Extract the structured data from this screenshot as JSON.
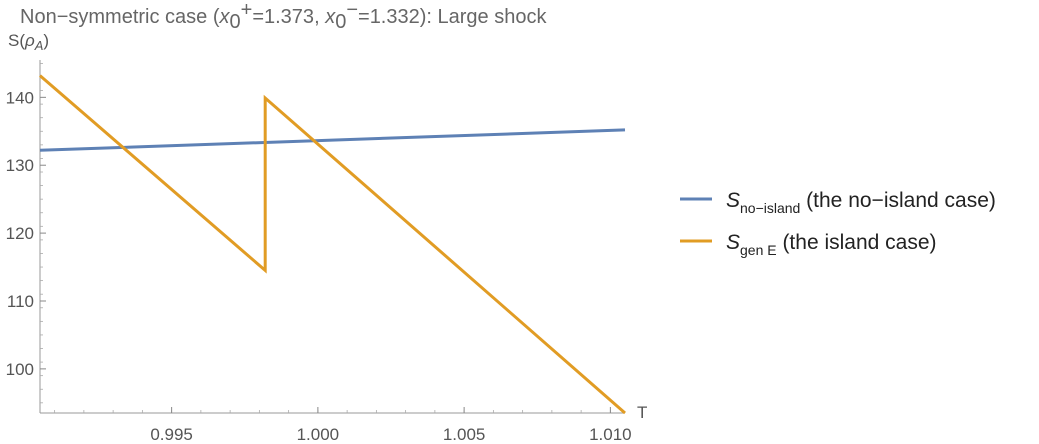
{
  "chart_data": {
    "type": "line",
    "title": {
      "prefix": "Non−symmetric case (",
      "x0_plus_value": "1.373",
      "x0_minus_value": "1.332",
      "suffix": "): Large shock"
    },
    "xlabel": "T",
    "ylabel": "S(ρA)",
    "xlim": [
      0.9905,
      1.0105
    ],
    "ylim": [
      93.5,
      145.5
    ],
    "xticks": [
      0.995,
      1.0,
      1.005,
      1.01
    ],
    "xtick_labels": [
      "0.995",
      "1.000",
      "1.005",
      "1.010"
    ],
    "yticks": [
      100,
      110,
      120,
      130,
      140
    ],
    "ytick_labels": [
      "100",
      "110",
      "120",
      "130",
      "140"
    ],
    "grid": false,
    "legend_position": "right",
    "series": [
      {
        "name": "S_no-island (the no−island case)",
        "legend_main": "S",
        "legend_sub": "no−island",
        "legend_desc": "(the no−island case)",
        "color": "#5E81B5",
        "x": [
          0.9905,
          1.0105
        ],
        "y": [
          132.2,
          135.2
        ]
      },
      {
        "name": "S_gen E (the island case)",
        "legend_main": "S",
        "legend_sub": "gen E",
        "legend_desc": "(the island case)",
        "color": "#E19C24",
        "x": [
          0.9905,
          0.9982,
          0.9982,
          1.0105
        ],
        "y": [
          143.2,
          114.5,
          139.9,
          93.5
        ]
      }
    ]
  }
}
